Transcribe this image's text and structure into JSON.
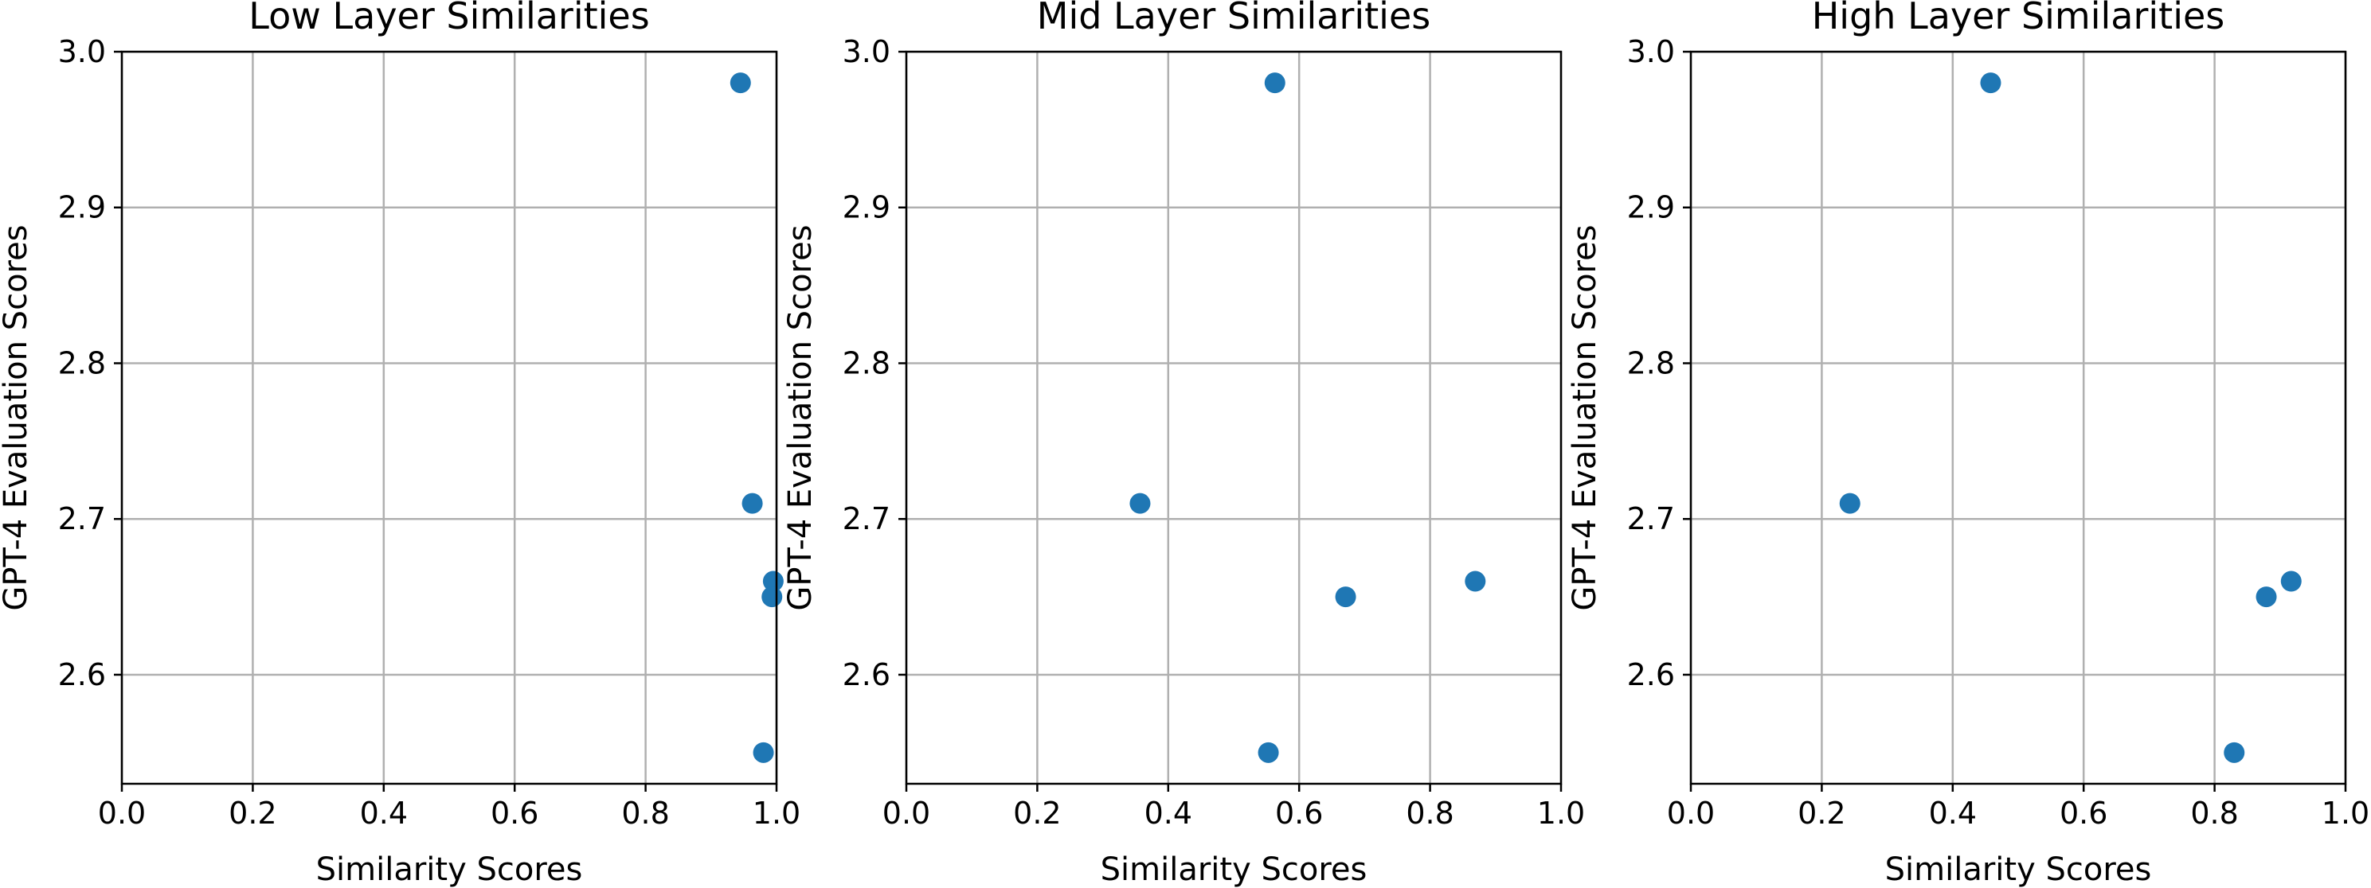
{
  "chart_data": [
    {
      "type": "scatter",
      "title": "Low Layer Similarities",
      "xlabel": "Similarity Scores",
      "ylabel": "GPT-4 Evaluation Scores",
      "xlim": [
        0.0,
        1.0
      ],
      "ylim": [
        2.53,
        3.0
      ],
      "xticks": [
        "0.0",
        "0.2",
        "0.4",
        "0.6",
        "0.8",
        "1.0"
      ],
      "yticks": [
        "2.6",
        "2.7",
        "2.8",
        "2.9",
        "3.0"
      ],
      "grid": true,
      "color": "#1f77b4",
      "points": [
        {
          "x": 0.945,
          "y": 2.98
        },
        {
          "x": 0.963,
          "y": 2.71
        },
        {
          "x": 0.995,
          "y": 2.66
        },
        {
          "x": 0.993,
          "y": 2.65
        },
        {
          "x": 0.98,
          "y": 2.55
        }
      ]
    },
    {
      "type": "scatter",
      "title": "Mid Layer Similarities",
      "xlabel": "Similarity Scores",
      "ylabel": "GPT-4 Evaluation Scores",
      "xlim": [
        0.0,
        1.0
      ],
      "ylim": [
        2.53,
        3.0
      ],
      "xticks": [
        "0.0",
        "0.2",
        "0.4",
        "0.6",
        "0.8",
        "1.0"
      ],
      "yticks": [
        "2.6",
        "2.7",
        "2.8",
        "2.9",
        "3.0"
      ],
      "grid": true,
      "color": "#1f77b4",
      "points": [
        {
          "x": 0.563,
          "y": 2.98
        },
        {
          "x": 0.357,
          "y": 2.71
        },
        {
          "x": 0.869,
          "y": 2.66
        },
        {
          "x": 0.671,
          "y": 2.65
        },
        {
          "x": 0.553,
          "y": 2.55
        }
      ]
    },
    {
      "type": "scatter",
      "title": "High Layer Similarities",
      "xlabel": "Similarity Scores",
      "ylabel": "GPT-4 Evaluation Scores",
      "xlim": [
        0.0,
        1.0
      ],
      "ylim": [
        2.53,
        3.0
      ],
      "xticks": [
        "0.0",
        "0.2",
        "0.4",
        "0.6",
        "0.8",
        "1.0"
      ],
      "yticks": [
        "2.6",
        "2.7",
        "2.8",
        "2.9",
        "3.0"
      ],
      "grid": true,
      "color": "#1f77b4",
      "points": [
        {
          "x": 0.458,
          "y": 2.98
        },
        {
          "x": 0.243,
          "y": 2.71
        },
        {
          "x": 0.917,
          "y": 2.66
        },
        {
          "x": 0.879,
          "y": 2.65
        },
        {
          "x": 0.83,
          "y": 2.55
        }
      ]
    }
  ]
}
